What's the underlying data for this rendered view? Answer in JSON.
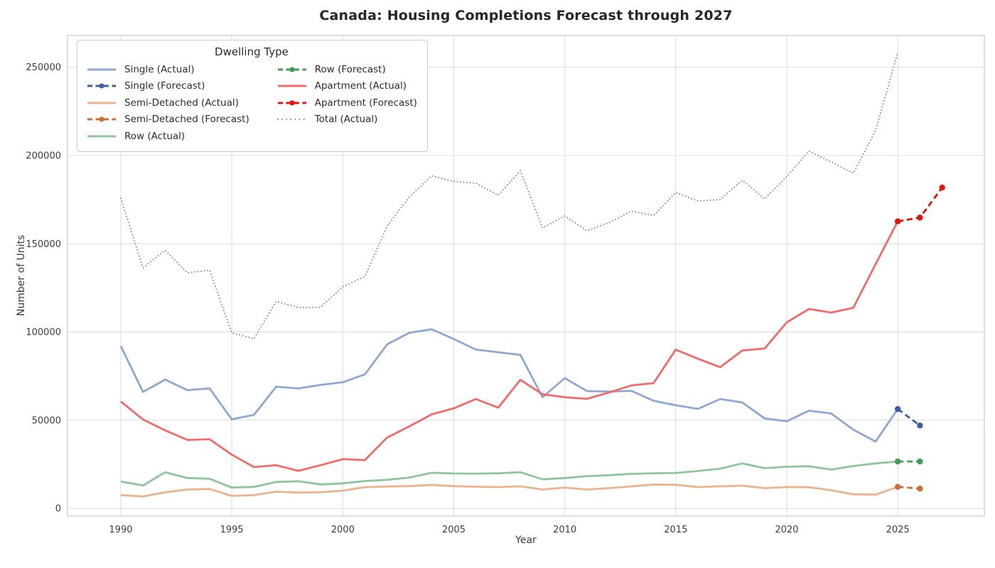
{
  "page_title": "Canada: Housing Completions Forecast through 2027",
  "chart_data": {
    "type": "line",
    "title": "Canada: Housing Completions Forecast through 2027",
    "xlabel": "Year",
    "ylabel": "Number of Units",
    "x_ticks": [
      1990,
      1995,
      2000,
      2005,
      2010,
      2015,
      2020,
      2025
    ],
    "y_ticks": [
      0,
      50000,
      100000,
      150000,
      200000,
      250000
    ],
    "x_domain": [
      1987.6,
      2028.9
    ],
    "y_domain": [
      -4400,
      268000
    ],
    "grid": true,
    "grid_color": "#dcdcdc",
    "spine_color": "#cfcfcf",
    "legend": {
      "title": "Dwelling Type",
      "position": "upper-left",
      "columns": 2
    },
    "series": [
      {
        "key": "single-actual",
        "name": "Single (Actual)",
        "style": "solid",
        "color": "#8fa8d1",
        "years": [
          1990,
          1991,
          1992,
          1993,
          1994,
          1995,
          1996,
          1997,
          1998,
          1999,
          2000,
          2001,
          2002,
          2003,
          2004,
          2005,
          2006,
          2007,
          2008,
          2009,
          2010,
          2011,
          2012,
          2013,
          2014,
          2015,
          2016,
          2017,
          2018,
          2019,
          2020,
          2021,
          2022,
          2023,
          2024,
          2025
        ],
        "values": [
          92000,
          66000,
          73000,
          67000,
          68000,
          50500,
          53000,
          69000,
          68000,
          70000,
          71500,
          76000,
          93000,
          99500,
          101500,
          96000,
          90000,
          88500,
          87000,
          63000,
          73800,
          66500,
          66200,
          66600,
          61000,
          58500,
          56400,
          62000,
          60000,
          51000,
          49400,
          55400,
          53800,
          44600,
          37900,
          56300
        ]
      },
      {
        "key": "single-forecast",
        "name": "Single (Forecast)",
        "style": "dashed",
        "color": "#3c5f9f",
        "years": [
          2025,
          2026
        ],
        "values": [
          56300,
          47000
        ]
      },
      {
        "key": "semi-detached-actual",
        "name": "Semi-Detached (Actual)",
        "style": "solid",
        "color": "#eab28e",
        "years": [
          1990,
          1991,
          1992,
          1993,
          1994,
          1995,
          1996,
          1997,
          1998,
          1999,
          2000,
          2001,
          2002,
          2003,
          2004,
          2005,
          2006,
          2007,
          2008,
          2009,
          2010,
          2011,
          2012,
          2013,
          2014,
          2015,
          2016,
          2017,
          2018,
          2019,
          2020,
          2021,
          2022,
          2023,
          2024,
          2025
        ],
        "values": [
          7500,
          6800,
          9100,
          10700,
          11000,
          7100,
          7500,
          9500,
          9000,
          9100,
          10100,
          12000,
          12400,
          12600,
          13300,
          12600,
          12300,
          12100,
          12500,
          10700,
          11800,
          10700,
          11500,
          12500,
          13500,
          13400,
          12100,
          12500,
          12900,
          11500,
          12100,
          12000,
          10300,
          8000,
          7800,
          12200
        ]
      },
      {
        "key": "semi-detached-forecast",
        "name": "Semi-Detached (Forecast)",
        "style": "dashed",
        "color": "#c96f3c",
        "years": [
          2025,
          2026
        ],
        "values": [
          12200,
          11200
        ]
      },
      {
        "key": "row-actual",
        "name": "Row (Actual)",
        "style": "solid",
        "color": "#8fc49e",
        "years": [
          1990,
          1991,
          1992,
          1993,
          1994,
          1995,
          1996,
          1997,
          1998,
          1999,
          2000,
          2001,
          2002,
          2003,
          2004,
          2005,
          2006,
          2007,
          2008,
          2009,
          2010,
          2011,
          2012,
          2013,
          2014,
          2015,
          2016,
          2017,
          2018,
          2019,
          2020,
          2021,
          2022,
          2023,
          2024,
          2025
        ],
        "values": [
          15200,
          13000,
          20500,
          17200,
          16800,
          11800,
          12200,
          15000,
          15400,
          13600,
          14200,
          15500,
          16200,
          17500,
          20200,
          19800,
          19700,
          19900,
          20500,
          16500,
          17200,
          18300,
          18800,
          19600,
          19900,
          20100,
          21200,
          22500,
          25500,
          22800,
          23600,
          23900,
          22000,
          24000,
          25500,
          26600
        ]
      },
      {
        "key": "row-forecast",
        "name": "Row (Forecast)",
        "style": "dashed",
        "color": "#3f9c54",
        "years": [
          2025,
          2026
        ],
        "values": [
          26600,
          26600
        ]
      },
      {
        "key": "apartment-actual",
        "name": "Apartment (Actual)",
        "style": "solid",
        "color": "#f26b6b",
        "years": [
          1990,
          1991,
          1992,
          1993,
          1994,
          1995,
          1996,
          1997,
          1998,
          1999,
          2000,
          2001,
          2002,
          2003,
          2004,
          2005,
          2006,
          2007,
          2008,
          2009,
          2010,
          2011,
          2012,
          2013,
          2014,
          2015,
          2016,
          2017,
          2018,
          2019,
          2020,
          2021,
          2022,
          2023,
          2024,
          2025
        ],
        "values": [
          60600,
          50400,
          44200,
          38800,
          39200,
          30500,
          23400,
          24500,
          21300,
          24500,
          27900,
          27400,
          40200,
          46500,
          53300,
          56700,
          62000,
          57100,
          72900,
          64700,
          63000,
          62100,
          65700,
          69700,
          71000,
          90000,
          84800,
          80000,
          89500,
          90600,
          105400,
          113000,
          111000,
          113700,
          138300,
          162700
        ]
      },
      {
        "key": "apartment-forecast",
        "name": "Apartment (Forecast)",
        "style": "dashed",
        "color": "#e1140c",
        "years": [
          2025,
          2026,
          2027
        ],
        "values": [
          162700,
          164800,
          181800
        ]
      },
      {
        "key": "total-actual",
        "name": "Total (Actual)",
        "style": "dotted",
        "color": "#8a8a8a",
        "years": [
          1990,
          1991,
          1992,
          1993,
          1994,
          1995,
          1996,
          1997,
          1998,
          1999,
          2000,
          2001,
          2002,
          2003,
          2004,
          2005,
          2006,
          2007,
          2008,
          2009,
          2010,
          2011,
          2012,
          2013,
          2014,
          2015,
          2016,
          2017,
          2018,
          2019,
          2020,
          2021,
          2022,
          2023,
          2024,
          2025
        ],
        "values": [
          175800,
          136300,
          146300,
          133500,
          135000,
          99500,
          96200,
          117300,
          113800,
          114000,
          125600,
          131500,
          160000,
          176500,
          188500,
          185300,
          184300,
          177500,
          191300,
          159000,
          165700,
          157300,
          162000,
          168500,
          166000,
          179000,
          174200,
          175000,
          186000,
          175400,
          188000,
          202500,
          196300,
          190000,
          214000,
          258300
        ]
      }
    ]
  }
}
